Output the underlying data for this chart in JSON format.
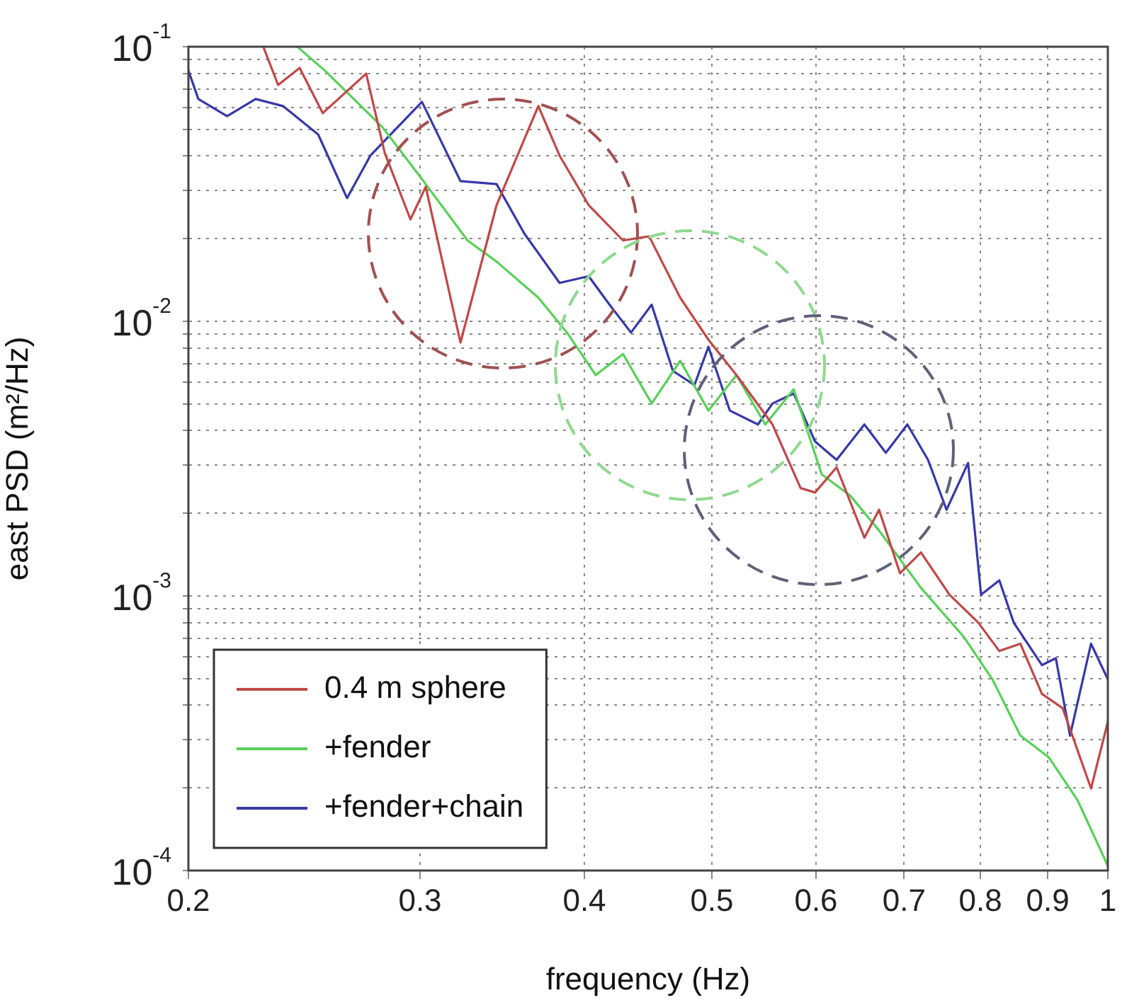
{
  "chart_data": {
    "type": "line",
    "xlabel": "frequency (Hz)",
    "ylabel": "east PSD (m²/Hz)",
    "log": "xy",
    "grid": true,
    "legend": "bottom left",
    "xlim": [
      0.2,
      1
    ],
    "xticks": [
      0.2,
      0.3,
      0.4,
      0.5,
      0.6,
      0.7,
      0.8,
      0.9,
      1
    ],
    "ylim": [
      0.0001,
      0.1
    ],
    "yticks": [
      {
        "value": 0.0001,
        "label": "10$^{-4}$"
      },
      {
        "value": 0.0002,
        "label": null
      },
      {
        "value": 0.0003,
        "label": null
      },
      {
        "value": 0.0004,
        "label": null
      },
      {
        "value": 0.0005,
        "label": null
      },
      {
        "value": 0.0006,
        "label": null
      },
      {
        "value": 0.0007,
        "label": null
      },
      {
        "value": 0.0008,
        "label": null
      },
      {
        "value": 0.0009,
        "label": null
      },
      {
        "value": 0.001,
        "label": "10$^{-3}$"
      },
      {
        "value": 0.002,
        "label": null
      },
      {
        "value": 0.003,
        "label": null
      },
      {
        "value": 0.004,
        "label": null
      },
      {
        "value": 0.005,
        "label": null
      },
      {
        "value": 0.006,
        "label": null
      },
      {
        "value": 0.007,
        "label": null
      },
      {
        "value": 0.008,
        "label": null
      },
      {
        "value": 0.009,
        "label": null
      },
      {
        "value": 0.01,
        "label": "10$^{-2}$"
      },
      {
        "value": 0.02,
        "label": null
      },
      {
        "value": 0.03,
        "label": null
      },
      {
        "value": 0.04,
        "label": null
      },
      {
        "value": 0.05,
        "label": null
      },
      {
        "value": 0.06,
        "label": null
      },
      {
        "value": 0.07,
        "label": null
      },
      {
        "value": 0.08,
        "label": null
      },
      {
        "value": 0.09,
        "label": null
      },
      {
        "value": 0.1,
        "label": "10$^{-1}$"
      }
    ],
    "series": [
      {
        "name": "0.4 m sphere",
        "color": "#c04848",
        "x": [
          0.228,
          0.234,
          0.243,
          0.253,
          0.273,
          0.282,
          0.295,
          0.303,
          0.322,
          0.343,
          0.369,
          0.383,
          0.403,
          0.428,
          0.448,
          0.473,
          0.497,
          0.522,
          0.556,
          0.584,
          0.599,
          0.622,
          0.653,
          0.67,
          0.695,
          0.721,
          0.758,
          0.797,
          0.827,
          0.858,
          0.891,
          0.924,
          0.971,
          1
        ],
        "values": [
          0.1,
          0.0726,
          0.0837,
          0.0573,
          0.0798,
          0.0411,
          0.0235,
          0.0309,
          0.00837,
          0.0265,
          0.0608,
          0.0401,
          0.0265,
          0.0197,
          0.0204,
          0.0122,
          0.00857,
          0.00637,
          0.00421,
          0.00247,
          0.00238,
          0.00294,
          0.00163,
          0.00206,
          0.00121,
          0.00144,
          0.00101,
          0.0008,
          0.00063,
          0.00067,
          0.00044,
          0.00039,
          0.000199,
          0.000348
        ]
      },
      {
        "name": "+fender",
        "color": "#58d058",
        "x": [
          0.242,
          0.254,
          0.281,
          0.303,
          0.326,
          0.343,
          0.369,
          0.388,
          0.408,
          0.428,
          0.45,
          0.473,
          0.497,
          0.522,
          0.549,
          0.577,
          0.606,
          0.637,
          0.67,
          0.721,
          0.777,
          0.817,
          0.858,
          0.902,
          0.948,
          1
        ],
        "values": [
          0.1,
          0.0818,
          0.0508,
          0.0316,
          0.0197,
          0.0165,
          0.0122,
          0.0091,
          0.00637,
          0.0076,
          0.00502,
          0.00718,
          0.00473,
          0.00637,
          0.00421,
          0.00566,
          0.00277,
          0.00232,
          0.00173,
          0.00107,
          0.00071,
          0.000497,
          0.00031,
          0.000258,
          0.000181,
          0.000104
        ]
      },
      {
        "name": "+fender+chain",
        "color": "#3838a8",
        "x": [
          0.2,
          0.2035,
          0.214,
          0.225,
          0.236,
          0.251,
          0.264,
          0.275,
          0.301,
          0.322,
          0.343,
          0.36,
          0.383,
          0.403,
          0.418,
          0.434,
          0.45,
          0.467,
          0.485,
          0.497,
          0.516,
          0.542,
          0.556,
          0.577,
          0.599,
          0.622,
          0.653,
          0.678,
          0.704,
          0.73,
          0.754,
          0.783,
          0.801,
          0.827,
          0.848,
          0.891,
          0.913,
          0.936,
          0.971,
          1
        ],
        "values": [
          0.0818,
          0.0645,
          0.0559,
          0.0645,
          0.0608,
          0.0479,
          0.0281,
          0.0401,
          0.063,
          0.0324,
          0.0316,
          0.0209,
          0.0138,
          0.0146,
          0.0115,
          0.0091,
          0.0115,
          0.0066,
          0.00586,
          0.00808,
          0.00473,
          0.00421,
          0.00502,
          0.00546,
          0.00365,
          0.00313,
          0.00421,
          0.00332,
          0.00421,
          0.00313,
          0.00206,
          0.00305,
          0.00101,
          0.00114,
          0.0008,
          0.00056,
          0.000593,
          0.00031,
          0.00067,
          0.000497
        ]
      }
    ]
  }
}
